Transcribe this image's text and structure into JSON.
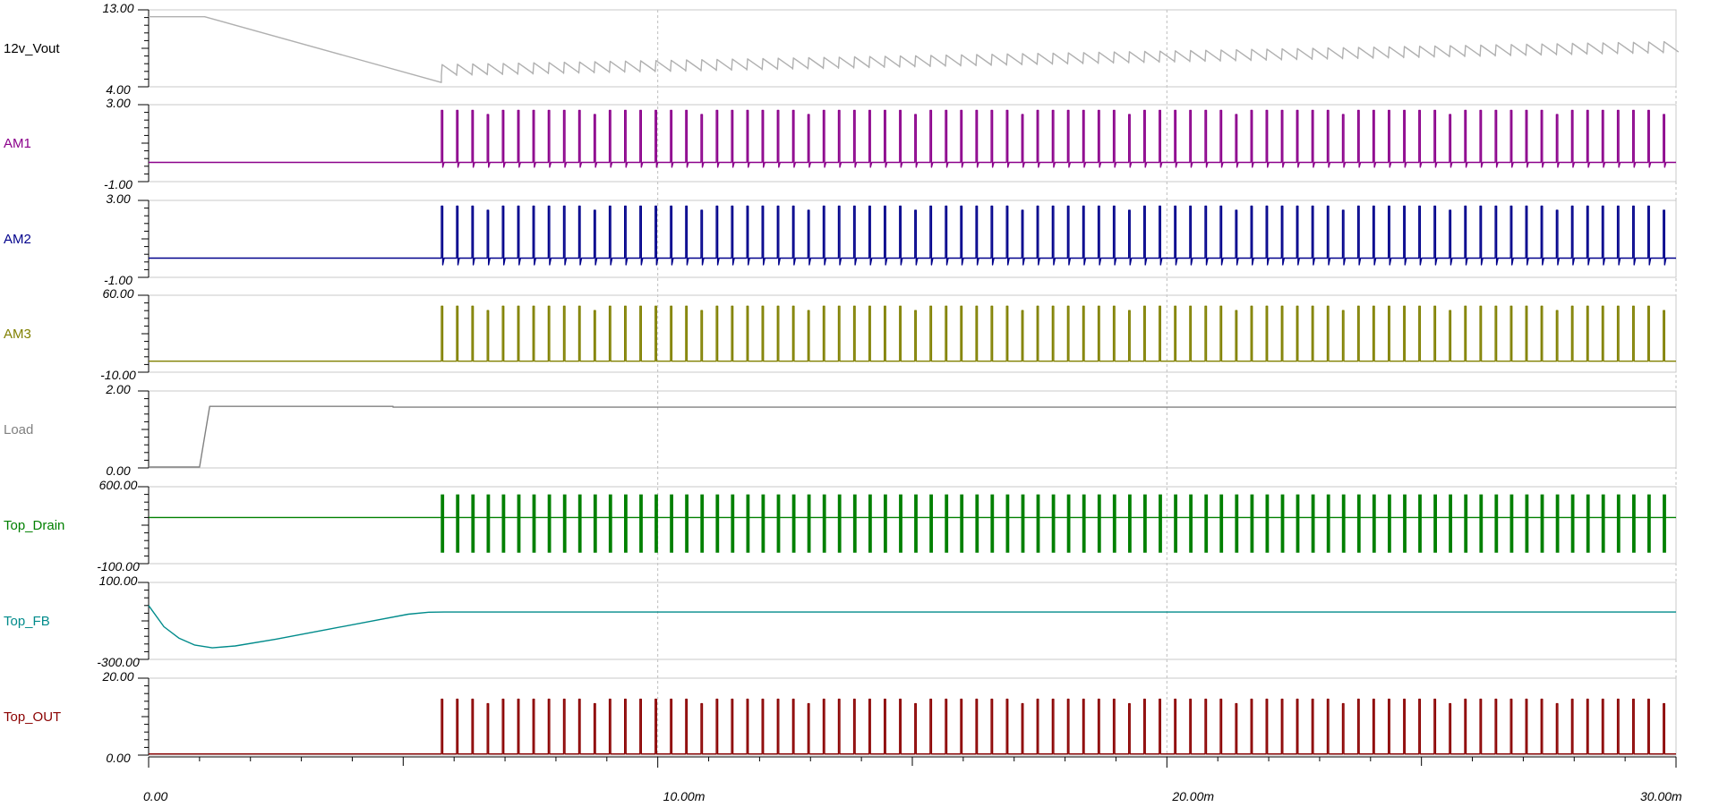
{
  "chart_data": {
    "type": "line",
    "x_axis": {
      "range": [
        0,
        0.03
      ],
      "tick_labels": [
        "0.00",
        "10.00m",
        "20.00m",
        "30.00m"
      ],
      "major_ticks": [
        0,
        0.01,
        0.02,
        0.03
      ],
      "minor_step": 0.001,
      "grid": true
    },
    "series": [
      {
        "name": "12v_Vout",
        "color": "#b0b0b0",
        "ylim": [
          4.0,
          13.0
        ],
        "y_tick_labels": [
          "13.00",
          "4.00"
        ],
        "shape": "vout",
        "points": [
          [
            0,
            12.2
          ],
          [
            0.0011,
            12.2
          ],
          [
            0.00575,
            4.5
          ],
          [
            0.0059,
            5.3
          ],
          [
            0.03,
            8.0
          ]
        ],
        "ripple": {
          "start": 0.00575,
          "period": 0.0003,
          "amplitude": 1.3
        }
      },
      {
        "name": "AM1",
        "color": "#8b008b",
        "ylim": [
          -1.0,
          3.0
        ],
        "y_tick_labels": [
          "3.00",
          "-1.00"
        ],
        "shape": "pulse",
        "baseline": 0.0,
        "pulse": {
          "start": 0.00575,
          "period": 0.0003,
          "peak": 2.7,
          "undershoot": -0.25
        }
      },
      {
        "name": "AM2",
        "color": "#00008b",
        "ylim": [
          -1.0,
          3.0
        ],
        "y_tick_labels": [
          "3.00",
          "-1.00"
        ],
        "shape": "pulse",
        "baseline": 0.0,
        "pulse": {
          "start": 0.00575,
          "period": 0.0003,
          "peak": 2.7,
          "undershoot": -0.35
        }
      },
      {
        "name": "AM3",
        "color": "#808000",
        "ylim": [
          -10.0,
          60.0
        ],
        "y_tick_labels": [
          "60.00",
          "-10.00"
        ],
        "shape": "pulse",
        "baseline": 0.0,
        "pulse": {
          "start": 0.00575,
          "period": 0.0003,
          "peak": 50.0,
          "undershoot": 0.0
        }
      },
      {
        "name": "Load",
        "color": "#808080",
        "ylim": [
          0.0,
          2.0
        ],
        "y_tick_labels": [
          "2.00",
          "0.00"
        ],
        "shape": "polyline",
        "points": [
          [
            0,
            0.02
          ],
          [
            0.001,
            0.02
          ],
          [
            0.0012,
            1.6
          ],
          [
            0.0048,
            1.6
          ],
          [
            0.0048,
            1.58
          ],
          [
            0.03,
            1.58
          ]
        ]
      },
      {
        "name": "Top_Drain",
        "color": "#008000",
        "ylim": [
          -100.0,
          600.0
        ],
        "y_tick_labels": [
          "600.00",
          "-100.00"
        ],
        "shape": "burst",
        "baseline": 320.0,
        "burst": {
          "start": 0.00575,
          "period": 0.0003,
          "high": 530.0,
          "low": 0.0,
          "width": 5e-05
        }
      },
      {
        "name": "Top_FB",
        "color": "#008b8b",
        "ylim": [
          -300.0,
          100.0
        ],
        "y_tick_labels": [
          "100.00",
          "-300.00"
        ],
        "shape": "polyline",
        "points": [
          [
            0,
            -20
          ],
          [
            0.0003,
            -130
          ],
          [
            0.0006,
            -190
          ],
          [
            0.0009,
            -225
          ],
          [
            0.00125,
            -240
          ],
          [
            0.0017,
            -230
          ],
          [
            0.0025,
            -195
          ],
          [
            0.0035,
            -145
          ],
          [
            0.0045,
            -95
          ],
          [
            0.0051,
            -65
          ],
          [
            0.0055,
            -55
          ],
          [
            0.0058,
            -54
          ],
          [
            0.03,
            -54
          ]
        ]
      },
      {
        "name": "Top_OUT",
        "color": "#8b0000",
        "ylim": [
          0.0,
          20.0
        ],
        "y_tick_labels": [
          "20.00",
          "0.00"
        ],
        "shape": "pulse",
        "baseline": 0.3,
        "pulse": {
          "start": 0.00575,
          "period": 0.0003,
          "peak": 14.5,
          "undershoot": 0.3
        }
      }
    ]
  }
}
